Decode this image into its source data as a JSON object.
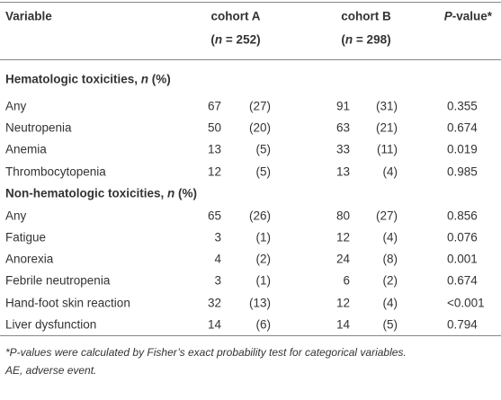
{
  "table": {
    "header": {
      "variable": "Variable",
      "cohort_a": {
        "name": "cohort A",
        "size": [
          "(",
          "n",
          " = 252)"
        ]
      },
      "cohort_b": {
        "name": "cohort B",
        "size": [
          "(",
          "n",
          " = 298)"
        ]
      },
      "p_value": [
        "P",
        "-value*"
      ]
    },
    "sections": [
      {
        "title": [
          "Hematologic toxicities, ",
          "n",
          " (%)"
        ],
        "rows": [
          [
            "Any",
            "67",
            "(27)",
            "91",
            "(31)",
            "0.355"
          ],
          [
            "Neutropenia",
            "50",
            "(20)",
            "63",
            "(21)",
            "0.674"
          ],
          [
            "Anemia",
            "13",
            "(5)",
            "33",
            "(11)",
            "0.019"
          ],
          [
            "Thrombocytopenia",
            "12",
            "(5)",
            "13",
            "(4)",
            "0.985"
          ]
        ]
      },
      {
        "title": [
          "Non-hematologic toxicities, ",
          "n",
          " (%)"
        ],
        "rows": [
          [
            "Any",
            "65",
            "(26)",
            "80",
            "(27)",
            "0.856"
          ],
          [
            "Fatigue",
            "3",
            "(1)",
            "12",
            "(4)",
            "0.076"
          ],
          [
            "Anorexia",
            "4",
            "(2)",
            "24",
            "(8)",
            "0.001"
          ],
          [
            "Febrile neutropenia",
            "3",
            "(1)",
            "6",
            "(2)",
            "0.674"
          ],
          [
            "Hand-foot skin reaction",
            "32",
            "(13)",
            "12",
            "(4)",
            "<0.001"
          ],
          [
            "Liver dysfunction",
            "14",
            "(6)",
            "14",
            "(5)",
            "0.794"
          ]
        ]
      }
    ]
  },
  "footnote": {
    "lines": [
      "*P-values were calculated by Fisher’s exact probability test for categorical variables.",
      "AE, adverse event."
    ]
  }
}
